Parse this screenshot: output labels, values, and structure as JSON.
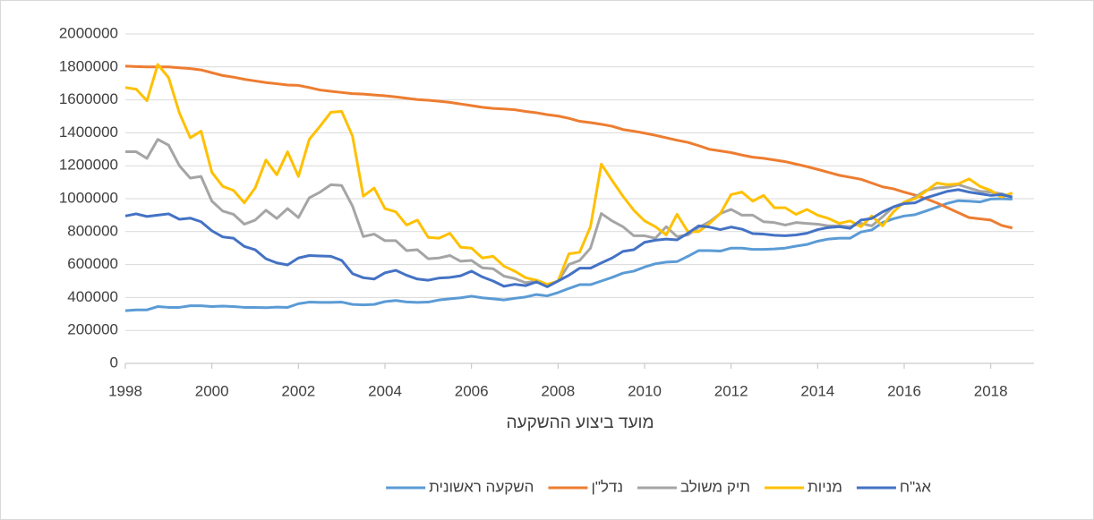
{
  "chart_data": {
    "type": "line",
    "x_label": "מועד ביצוע ההשקעה",
    "x": [
      1998,
      1998.25,
      1998.5,
      1998.75,
      1999,
      1999.25,
      1999.5,
      1999.75,
      2000,
      2000.25,
      2000.5,
      2000.75,
      2001,
      2001.25,
      2001.5,
      2001.75,
      2002,
      2002.25,
      2002.5,
      2002.75,
      2003,
      2003.25,
      2003.5,
      2003.75,
      2004,
      2004.25,
      2004.5,
      2004.75,
      2005,
      2005.25,
      2005.5,
      2005.75,
      2006,
      2006.25,
      2006.5,
      2006.75,
      2007,
      2007.25,
      2007.5,
      2007.75,
      2008,
      2008.25,
      2008.5,
      2008.75,
      2009,
      2009.25,
      2009.5,
      2009.75,
      2010,
      2010.25,
      2010.5,
      2010.75,
      2011,
      2011.25,
      2011.5,
      2011.75,
      2012,
      2012.25,
      2012.5,
      2012.75,
      2013,
      2013.25,
      2013.5,
      2013.75,
      2014,
      2014.25,
      2014.5,
      2014.75,
      2015,
      2015.25,
      2015.5,
      2015.75,
      2016,
      2016.25,
      2016.5,
      2016.75,
      2017,
      2017.25,
      2017.5,
      2017.75,
      2018,
      2018.25,
      2018.5
    ],
    "series": [
      {
        "name": "אג\"ח",
        "color": "#4472c4",
        "values": [
          895000,
          908000,
          892000,
          900000,
          908000,
          875000,
          882000,
          860000,
          805000,
          768000,
          760000,
          710000,
          690000,
          635000,
          610000,
          598000,
          640000,
          655000,
          652000,
          650000,
          625000,
          545000,
          520000,
          512000,
          550000,
          565000,
          535000,
          512000,
          505000,
          518000,
          522000,
          532000,
          560000,
          525000,
          500000,
          468000,
          480000,
          472000,
          495000,
          465000,
          500000,
          535000,
          578000,
          578000,
          610000,
          640000,
          680000,
          690000,
          735000,
          748000,
          755000,
          750000,
          790000,
          835000,
          828000,
          812000,
          828000,
          815000,
          788000,
          785000,
          778000,
          775000,
          780000,
          790000,
          812000,
          825000,
          830000,
          820000,
          870000,
          880000,
          920000,
          950000,
          970000,
          975000,
          1005000,
          1025000,
          1045000,
          1055000,
          1040000,
          1030000,
          1020000,
          1025000,
          1010000
        ]
      },
      {
        "name": "מניות",
        "color": "#ffc000",
        "values": [
          1675000,
          1665000,
          1595000,
          1815000,
          1735000,
          1520000,
          1370000,
          1410000,
          1160000,
          1075000,
          1050000,
          975000,
          1065000,
          1235000,
          1145000,
          1285000,
          1135000,
          1360000,
          1440000,
          1525000,
          1530000,
          1380000,
          1015000,
          1065000,
          940000,
          920000,
          840000,
          870000,
          765000,
          760000,
          790000,
          705000,
          700000,
          640000,
          650000,
          590000,
          560000,
          520000,
          505000,
          480000,
          500000,
          665000,
          675000,
          830000,
          1210000,
          1110000,
          1015000,
          930000,
          865000,
          830000,
          780000,
          905000,
          800000,
          800000,
          850000,
          910000,
          1025000,
          1040000,
          985000,
          1020000,
          945000,
          945000,
          905000,
          935000,
          900000,
          880000,
          850000,
          865000,
          830000,
          895000,
          835000,
          920000,
          980000,
          1000000,
          1045000,
          1095000,
          1085000,
          1090000,
          1120000,
          1075000,
          1050000,
          1010000,
          1035000
        ]
      },
      {
        "name": "תיק משולב",
        "color": "#a5a5a5",
        "values": [
          1285000,
          1285000,
          1245000,
          1360000,
          1325000,
          1200000,
          1125000,
          1135000,
          985000,
          925000,
          905000,
          845000,
          870000,
          930000,
          880000,
          940000,
          885000,
          1005000,
          1040000,
          1085000,
          1080000,
          955000,
          770000,
          785000,
          745000,
          745000,
          685000,
          690000,
          635000,
          640000,
          655000,
          620000,
          625000,
          580000,
          575000,
          530000,
          515000,
          490000,
          500000,
          470000,
          500000,
          600000,
          625000,
          700000,
          910000,
          865000,
          830000,
          775000,
          775000,
          760000,
          830000,
          770000,
          780000,
          825000,
          860000,
          910000,
          935000,
          900000,
          900000,
          860000,
          855000,
          840000,
          855000,
          850000,
          845000,
          835000,
          835000,
          830000,
          850000,
          835000,
          890000,
          950000,
          975000,
          1010000,
          1050000,
          1065000,
          1070000,
          1085000,
          1065000,
          1045000,
          1040000,
          1030000,
          1010000
        ]
      },
      {
        "name": "נדל\"ן",
        "color": "#ed7d31",
        "values": [
          1805000,
          1802000,
          1800000,
          1800000,
          1800000,
          1795000,
          1790000,
          1782000,
          1765000,
          1748000,
          1738000,
          1725000,
          1715000,
          1705000,
          1698000,
          1690000,
          1688000,
          1675000,
          1660000,
          1652000,
          1645000,
          1638000,
          1635000,
          1630000,
          1625000,
          1618000,
          1610000,
          1602000,
          1598000,
          1592000,
          1585000,
          1575000,
          1565000,
          1555000,
          1548000,
          1545000,
          1540000,
          1530000,
          1522000,
          1510000,
          1502000,
          1488000,
          1470000,
          1462000,
          1452000,
          1440000,
          1420000,
          1410000,
          1398000,
          1385000,
          1370000,
          1355000,
          1342000,
          1322000,
          1300000,
          1290000,
          1280000,
          1265000,
          1252000,
          1245000,
          1235000,
          1225000,
          1210000,
          1195000,
          1178000,
          1160000,
          1142000,
          1130000,
          1118000,
          1095000,
          1072000,
          1060000,
          1040000,
          1022000,
          1000000,
          975000,
          945000,
          915000,
          885000,
          878000,
          870000,
          838000,
          822000
        ]
      },
      {
        "name": "השקעה ראשונית",
        "color": "#5b9bd5",
        "values": [
          320000,
          325000,
          325000,
          345000,
          340000,
          340000,
          350000,
          350000,
          345000,
          348000,
          345000,
          340000,
          340000,
          338000,
          342000,
          340000,
          362000,
          372000,
          370000,
          370000,
          372000,
          358000,
          355000,
          358000,
          375000,
          382000,
          373000,
          370000,
          372000,
          385000,
          392000,
          398000,
          408000,
          398000,
          392000,
          385000,
          395000,
          403000,
          418000,
          410000,
          430000,
          455000,
          478000,
          478000,
          500000,
          522000,
          548000,
          560000,
          585000,
          605000,
          615000,
          618000,
          650000,
          685000,
          685000,
          682000,
          700000,
          700000,
          692000,
          692000,
          695000,
          700000,
          712000,
          722000,
          742000,
          755000,
          760000,
          760000,
          798000,
          810000,
          855000,
          878000,
          895000,
          903000,
          925000,
          948000,
          972000,
          988000,
          985000,
          980000,
          998000,
          1000000,
          997000
        ]
      }
    ],
    "xlim": [
      1998,
      2019
    ],
    "xticks": [
      1998,
      2000,
      2002,
      2004,
      2006,
      2008,
      2010,
      2012,
      2014,
      2016,
      2018
    ],
    "ylim": [
      0,
      2000000
    ],
    "yticks": [
      0,
      200000,
      400000,
      600000,
      800000,
      1000000,
      1200000,
      1400000,
      1600000,
      1800000,
      2000000
    ],
    "grid": true,
    "legend": "bottom"
  }
}
